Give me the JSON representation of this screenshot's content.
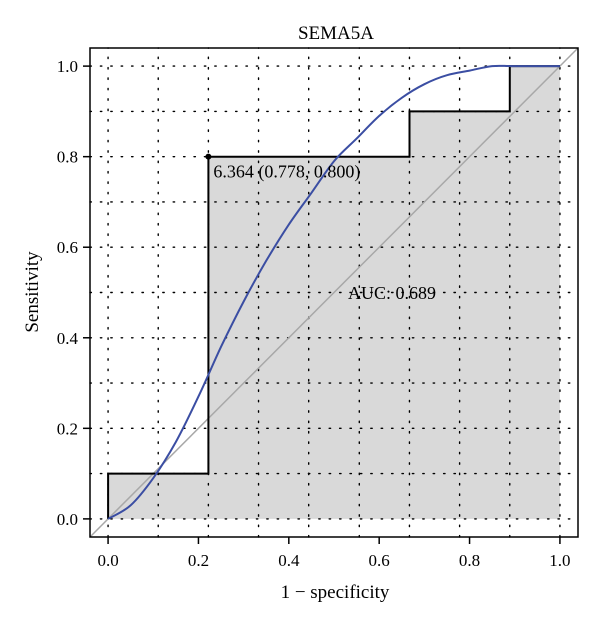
{
  "chart_data": {
    "type": "line",
    "title": "SEMA5A",
    "xlabel": "1 − specificity",
    "ylabel": "Sensitivity",
    "xlim": [
      -0.04,
      1.04
    ],
    "ylim": [
      -0.04,
      1.04
    ],
    "xticks": [
      "0.0",
      "0.2",
      "0.4",
      "0.6",
      "0.8",
      "1.0"
    ],
    "yticks": [
      "0.0",
      "0.2",
      "0.4",
      "0.6",
      "0.8",
      "1.0"
    ],
    "grid": true,
    "series": [
      {
        "kind": "empirical-roc-step",
        "color": "#000000",
        "fill": "#d9d9d9",
        "points": [
          [
            0,
            0
          ],
          [
            0,
            0.1
          ],
          [
            0.222,
            0.1
          ],
          [
            0.222,
            0.8
          ],
          [
            0.667,
            0.8
          ],
          [
            0.667,
            0.9
          ],
          [
            0.889,
            0.9
          ],
          [
            0.889,
            1.0
          ],
          [
            1.0,
            1.0
          ]
        ]
      },
      {
        "kind": "smoothed-roc",
        "color": "#3b4ea3",
        "points": [
          [
            0,
            0
          ],
          [
            0.05,
            0.03
          ],
          [
            0.1,
            0.09
          ],
          [
            0.15,
            0.17
          ],
          [
            0.2,
            0.27
          ],
          [
            0.25,
            0.38
          ],
          [
            0.3,
            0.48
          ],
          [
            0.35,
            0.57
          ],
          [
            0.4,
            0.65
          ],
          [
            0.45,
            0.72
          ],
          [
            0.5,
            0.79
          ],
          [
            0.55,
            0.84
          ],
          [
            0.6,
            0.89
          ],
          [
            0.65,
            0.93
          ],
          [
            0.7,
            0.96
          ],
          [
            0.75,
            0.98
          ],
          [
            0.8,
            0.99
          ],
          [
            0.85,
            1.0
          ],
          [
            0.9,
            1.0
          ],
          [
            1.0,
            1.0
          ]
        ]
      },
      {
        "kind": "reference-diagonal",
        "color": "#a8a8a8",
        "points": [
          [
            -0.04,
            -0.04
          ],
          [
            1.04,
            1.04
          ]
        ]
      }
    ],
    "grid_x": [
      0.0,
      0.111,
      0.222,
      0.333,
      0.444,
      0.556,
      0.667,
      0.778,
      0.889,
      1.0
    ],
    "grid_y": [
      0.0,
      0.1,
      0.2,
      0.3,
      0.4,
      0.5,
      0.6,
      0.7,
      0.8,
      0.9,
      1.0
    ],
    "threshold_point": {
      "x": 0.222,
      "y": 0.8,
      "label": "6.364 (0.778, 0.800)"
    },
    "auc_label": "AUC: 0.689"
  }
}
